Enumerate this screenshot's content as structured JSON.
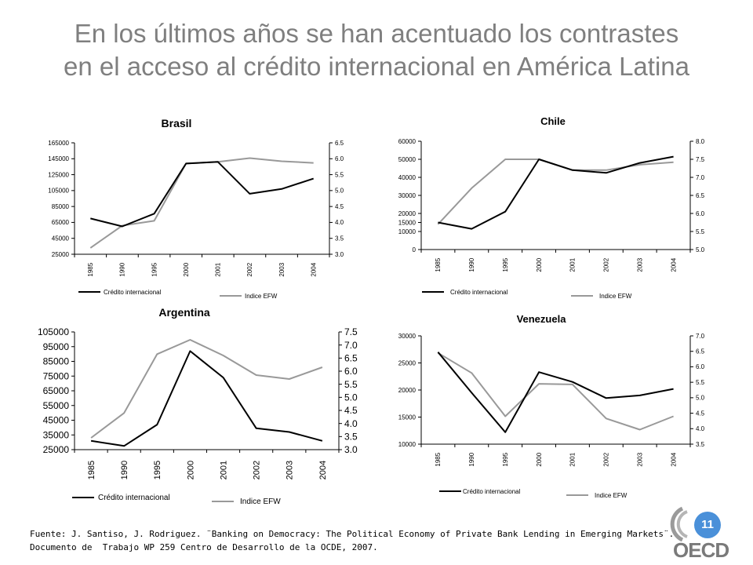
{
  "slide": {
    "title_line1": "En los últimos años se han acentuado los contrastes",
    "title_line2": "en el acceso al crédito internacional en América Latina",
    "source_line1": "Fuente: J. Santiso, J. Rodriguez. ¨Banking on Democracy: The Political Economy of Private Bank Lending in Emerging Markets¨.",
    "source_line2": "Documento de  Trabajo WP 259 Centro de Desarrollo de la OCDE, 2007.",
    "page_number": "11",
    "logo_text": "OECD"
  },
  "colors": {
    "credit": "#000000",
    "efw": "#999999",
    "title": "#7f7f7f",
    "badge": "#4a90d9"
  },
  "chart_data": [
    {
      "id": "brasil",
      "type": "line",
      "title": "Brasil",
      "categories": [
        "1985",
        "1990",
        "1995",
        "2000",
        "2001",
        "2002",
        "2003",
        "2004"
      ],
      "ylim_left": [
        25000,
        165000
      ],
      "yticks_left": [
        "25000",
        "45000",
        "65000",
        "85000",
        "105000",
        "125000",
        "145000",
        "165000"
      ],
      "ylim_right": [
        3.0,
        6.5
      ],
      "yticks_right": [
        "3.0",
        "3.5",
        "4.0",
        "4.5",
        "5.0",
        "5.5",
        "6.0",
        "6.5"
      ],
      "series": [
        {
          "name": "Crédito internacional",
          "axis": "left",
          "values": [
            70000,
            60000,
            76000,
            139000,
            141000,
            101000,
            107000,
            120000
          ]
        },
        {
          "name": "Indice EFW",
          "axis": "right",
          "values": [
            3.2,
            3.9,
            4.05,
            5.85,
            5.9,
            6.02,
            5.92,
            5.87
          ]
        }
      ]
    },
    {
      "id": "chile",
      "type": "line",
      "title": "Chile",
      "categories": [
        "1985",
        "1990",
        "1995",
        "2000",
        "2001",
        "2002",
        "2003",
        "2004"
      ],
      "ylim_left": [
        0,
        60000
      ],
      "yticks_left": [
        "0",
        "10000",
        "15000",
        "20000",
        "30000",
        "40000",
        "50000",
        "60000"
      ],
      "ylim_right": [
        5.0,
        8.0
      ],
      "yticks_right": [
        "5.0",
        "5.5",
        "6.0",
        "6.5",
        "7.0",
        "7.5",
        "8.0"
      ],
      "series": [
        {
          "name": "Crédito internacional",
          "axis": "left",
          "values": [
            15000,
            11500,
            21000,
            50000,
            44000,
            42500,
            48000,
            51500
          ]
        },
        {
          "name": "Indice EFW",
          "axis": "right",
          "values": [
            5.7,
            6.7,
            7.5,
            7.5,
            7.2,
            7.2,
            7.35,
            7.42
          ]
        }
      ]
    },
    {
      "id": "argentina",
      "type": "line",
      "title": "Argentina",
      "categories": [
        "1985",
        "1990",
        "1995",
        "2000",
        "2001",
        "2002",
        "2003",
        "2004"
      ],
      "ylim_left": [
        25000,
        105000
      ],
      "yticks_left": [
        "25000",
        "35000",
        "45000",
        "55000",
        "65000",
        "75000",
        "85000",
        "95000",
        "105000"
      ],
      "ylim_right": [
        3.0,
        7.5
      ],
      "yticks_right": [
        "3.0",
        "3.5",
        "4.0",
        "4.5",
        "5.0",
        "5.5",
        "6.0",
        "6.5",
        "7.0",
        "7.5"
      ],
      "series": [
        {
          "name": "Crédito internacional",
          "axis": "left",
          "values": [
            31000,
            27500,
            42000,
            92000,
            74000,
            39500,
            37000,
            31000
          ]
        },
        {
          "name": "Indice EFW",
          "axis": "right",
          "values": [
            3.45,
            4.4,
            6.65,
            7.2,
            6.6,
            5.85,
            5.7,
            6.15
          ]
        }
      ]
    },
    {
      "id": "venezuela",
      "type": "line",
      "title": "Venezuela",
      "categories": [
        "1985",
        "1990",
        "1995",
        "2000",
        "2001",
        "2002",
        "2003",
        "2004"
      ],
      "ylim_left": [
        10000,
        30000
      ],
      "yticks_left": [
        "10000",
        "15000",
        "20000",
        "25000",
        "30000"
      ],
      "ylim_right": [
        3.5,
        7.0
      ],
      "yticks_right": [
        "3.5",
        "4.0",
        "4.5",
        "5.0",
        "5.5",
        "6.0",
        "6.5",
        "7.0"
      ],
      "series": [
        {
          "name": "Crédito internacional",
          "axis": "left",
          "values": [
            27000,
            19500,
            12200,
            23300,
            21500,
            18500,
            19000,
            20200
          ]
        },
        {
          "name": "Indice EFW",
          "axis": "right",
          "values": [
            6.45,
            5.8,
            4.4,
            5.45,
            5.43,
            4.33,
            3.97,
            4.4
          ]
        }
      ]
    }
  ]
}
